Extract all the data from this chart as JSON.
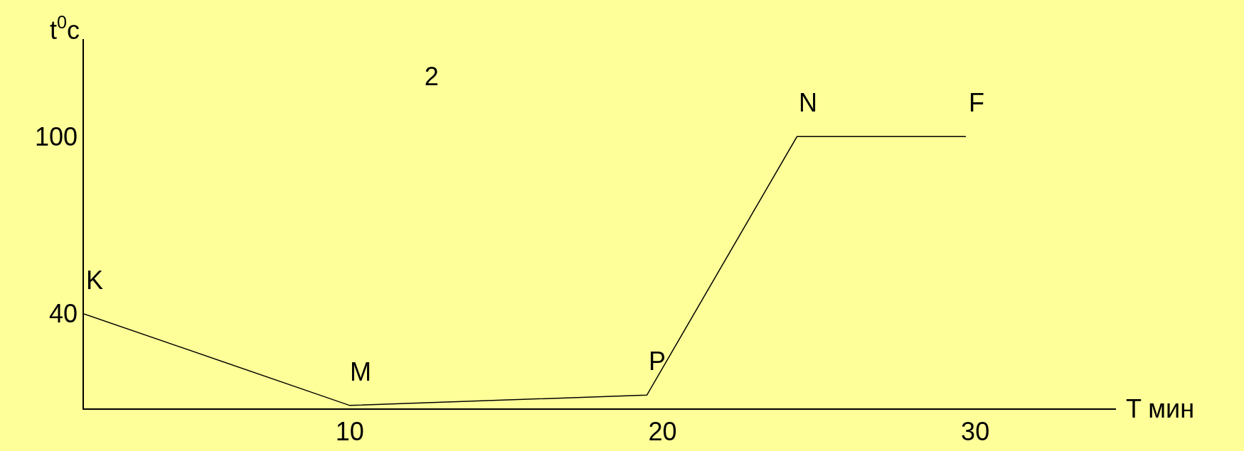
{
  "chart_data": {
    "type": "line",
    "title": "2",
    "xlabel": "T мин",
    "ylabel": "t$^{0}$c",
    "x": [
      1.5,
      10,
      19.5,
      24.3,
      29.7
    ],
    "series": [
      {
        "color": "#000000",
        "values": [
          40,
          9,
          12.5,
          100,
          100
        ]
      }
    ],
    "annotations": [
      {
        "text": "K",
        "x": 1.5,
        "y": 40
      },
      {
        "text": "M",
        "x": 10,
        "y": 9
      },
      {
        "text": "P",
        "x": 19.5,
        "y": 12.5
      },
      {
        "text": "N",
        "x": 24.3,
        "y": 100
      },
      {
        "text": "F",
        "x": 29.7,
        "y": 100
      }
    ],
    "xlim": [
      1.5,
      34.5
    ],
    "ylim": [
      8,
      133
    ],
    "xticks": [
      10,
      20,
      30
    ],
    "yticks": [
      40,
      100
    ],
    "grid": false,
    "marker": "none",
    "line_style": "solid"
  }
}
